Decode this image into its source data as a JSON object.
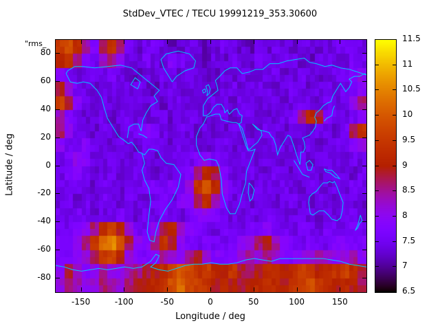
{
  "title": "StdDev_VTEC / TECU 19991219_353.30600",
  "corner_label": "\"rms_",
  "xlabel": "Longitude / deg",
  "ylabel": "Latitude / deg",
  "xticks": [
    -150,
    -100,
    -50,
    0,
    50,
    100,
    150
  ],
  "yticks": [
    80,
    60,
    40,
    20,
    0,
    -20,
    -40,
    -60,
    -80
  ],
  "colorbar": {
    "min": 6.5,
    "max": 11.5,
    "ticks": [
      6.5,
      7,
      7.5,
      8,
      8.5,
      9,
      9.5,
      10,
      10.5,
      11,
      11.5
    ]
  },
  "colors": {
    "coastline": "#00c8ff",
    "frame": "#000000",
    "background": "#ffffff"
  },
  "chart_data": {
    "type": "heatmap",
    "title": "StdDev_VTEC / TECU 19991219_353.30600",
    "xlabel": "Longitude / deg",
    "ylabel": "Latitude / deg",
    "zlabel": "StdDev_VTEC / TECU",
    "xlim": [
      -180,
      180
    ],
    "ylim": [
      -90,
      90
    ],
    "zlim": [
      6.5,
      11.5
    ],
    "grid": {
      "lon_min": -180,
      "lon_max": 180,
      "lon_step": 10,
      "lat_min": -90,
      "lat_max": 90,
      "lat_step": 10,
      "row_order": "north-to-south"
    },
    "values": [
      [
        9.6,
        9.9,
        9.3,
        8.4,
        7.8,
        8.8,
        9.4,
        8.6,
        7.6,
        7.3,
        7.5,
        7.7,
        7.4,
        7.2,
        7.3,
        7.5,
        7.4,
        7.2,
        7.3,
        7.5,
        7.4,
        7.3,
        7.2,
        7.4,
        7.3,
        7.5,
        7.4,
        7.3,
        7.5,
        7.4,
        7.3,
        7.4,
        7.5,
        7.6,
        7.5,
        7.4
      ],
      [
        9.0,
        9.3,
        8.6,
        7.8,
        7.5,
        8.2,
        8.6,
        7.9,
        7.4,
        7.3,
        7.6,
        7.4,
        7.3,
        7.8,
        7.6,
        7.4,
        7.3,
        7.2,
        7.4,
        7.3,
        7.5,
        7.4,
        7.3,
        7.6,
        7.4,
        7.3,
        7.5,
        7.4,
        7.3,
        7.2,
        7.4,
        7.5,
        7.3,
        7.4,
        7.6,
        7.5
      ],
      [
        7.8,
        7.6,
        7.4,
        7.3,
        7.5,
        7.4,
        7.6,
        7.4,
        7.3,
        7.2,
        7.4,
        7.3,
        7.5,
        7.4,
        7.3,
        7.5,
        7.4,
        7.3,
        7.2,
        7.4,
        7.3,
        7.5,
        7.4,
        7.3,
        7.4,
        7.5,
        7.3,
        7.4,
        7.5,
        7.4,
        7.3,
        7.4,
        7.5,
        7.6,
        7.8,
        8.0
      ],
      [
        8.8,
        8.2,
        7.6,
        7.4,
        7.3,
        7.5,
        7.4,
        7.3,
        7.4,
        7.5,
        7.3,
        7.2,
        7.4,
        7.5,
        7.3,
        7.4,
        7.5,
        7.4,
        7.3,
        7.4,
        7.5,
        7.3,
        7.4,
        7.5,
        7.4,
        7.3,
        7.4,
        7.5,
        7.4,
        7.3,
        7.4,
        7.5,
        7.4,
        7.5,
        7.7,
        7.9
      ],
      [
        9.6,
        8.8,
        7.8,
        7.4,
        7.3,
        7.5,
        7.4,
        7.3,
        7.5,
        7.4,
        7.3,
        7.4,
        7.2,
        7.4,
        7.5,
        7.3,
        7.4,
        7.3,
        7.5,
        7.4,
        7.3,
        7.5,
        7.4,
        7.3,
        7.4,
        7.5,
        7.3,
        7.4,
        7.5,
        7.4,
        7.3,
        7.5,
        7.4,
        7.5,
        8.0,
        8.6
      ],
      [
        8.4,
        7.8,
        7.5,
        7.3,
        7.4,
        7.5,
        7.3,
        7.4,
        7.5,
        7.4,
        7.3,
        7.4,
        7.5,
        7.3,
        7.4,
        7.5,
        7.4,
        7.3,
        7.4,
        7.5,
        7.3,
        7.4,
        7.5,
        7.4,
        7.3,
        7.4,
        7.5,
        7.6,
        8.6,
        9.2,
        8.8,
        7.8,
        7.5,
        7.4,
        7.6,
        7.8
      ],
      [
        8.6,
        7.9,
        7.5,
        7.4,
        7.3,
        7.5,
        7.4,
        7.3,
        7.5,
        7.6,
        7.8,
        7.7,
        7.4,
        7.3,
        7.5,
        7.4,
        7.3,
        7.4,
        7.2,
        7.3,
        7.5,
        7.4,
        7.3,
        7.4,
        7.5,
        7.4,
        7.3,
        7.5,
        7.4,
        7.3,
        7.5,
        7.4,
        7.3,
        7.6,
        8.8,
        9.4
      ],
      [
        7.9,
        7.6,
        7.4,
        7.8,
        7.5,
        7.4,
        7.3,
        7.5,
        7.4,
        7.3,
        7.6,
        7.5,
        7.4,
        7.3,
        7.5,
        7.4,
        7.2,
        7.3,
        7.4,
        7.5,
        7.3,
        7.4,
        7.5,
        7.4,
        7.3,
        7.5,
        7.4,
        7.3,
        7.4,
        7.5,
        7.3,
        7.4,
        7.5,
        7.4,
        7.8,
        8.2
      ],
      [
        7.5,
        7.7,
        8.0,
        7.8,
        7.4,
        7.3,
        7.5,
        7.4,
        7.3,
        7.5,
        7.4,
        7.3,
        7.5,
        7.4,
        7.6,
        7.5,
        7.8,
        8.0,
        7.6,
        7.4,
        7.3,
        7.5,
        7.4,
        7.3,
        7.5,
        7.4,
        7.3,
        7.4,
        7.5,
        7.3,
        7.4,
        7.5,
        7.4,
        7.3,
        7.5,
        7.4
      ],
      [
        7.4,
        7.6,
        7.9,
        7.5,
        7.3,
        7.4,
        7.5,
        7.3,
        7.4,
        7.5,
        7.4,
        7.3,
        7.5,
        7.4,
        7.6,
        7.8,
        8.6,
        9.2,
        8.8,
        7.8,
        7.4,
        7.3,
        7.5,
        7.4,
        7.3,
        7.5,
        7.4,
        7.3,
        7.5,
        7.4,
        7.3,
        7.4,
        7.5,
        7.4,
        7.3,
        7.5
      ],
      [
        7.5,
        7.4,
        7.6,
        7.4,
        7.3,
        7.5,
        7.4,
        7.3,
        7.5,
        7.4,
        7.6,
        7.7,
        7.5,
        7.8,
        7.6,
        8.2,
        9.4,
        10.0,
        9.2,
        8.0,
        7.5,
        7.4,
        7.3,
        7.5,
        7.4,
        7.3,
        7.5,
        7.4,
        7.3,
        7.5,
        7.4,
        7.3,
        7.5,
        7.4,
        7.6,
        7.5
      ],
      [
        7.4,
        7.5,
        7.3,
        7.5,
        7.4,
        7.6,
        7.4,
        7.3,
        7.5,
        7.4,
        7.3,
        7.5,
        7.6,
        7.4,
        7.8,
        8.0,
        8.8,
        9.2,
        8.4,
        7.8,
        7.4,
        7.5,
        7.3,
        7.4,
        7.5,
        7.3,
        7.4,
        7.5,
        7.4,
        7.3,
        7.5,
        7.4,
        7.3,
        7.5,
        7.4,
        7.3
      ],
      [
        7.5,
        7.4,
        7.6,
        7.5,
        7.3,
        7.4,
        7.5,
        7.6,
        7.4,
        7.3,
        7.5,
        7.4,
        7.6,
        7.5,
        7.3,
        7.6,
        7.8,
        8.0,
        7.8,
        7.5,
        7.4,
        7.3,
        7.5,
        7.4,
        7.6,
        7.5,
        7.3,
        7.4,
        7.5,
        7.4,
        7.3,
        7.5,
        7.4,
        7.6,
        7.5,
        7.4
      ],
      [
        7.6,
        7.5,
        7.8,
        8.0,
        8.6,
        9.2,
        9.6,
        9.0,
        8.2,
        7.6,
        7.5,
        8.0,
        8.8,
        9.2,
        8.4,
        7.8,
        7.6,
        7.5,
        7.4,
        7.6,
        7.5,
        7.4,
        7.6,
        7.5,
        7.8,
        7.6,
        7.5,
        7.4,
        7.6,
        7.5,
        7.4,
        7.6,
        7.5,
        7.4,
        7.6,
        7.5
      ],
      [
        7.8,
        7.7,
        8.0,
        8.6,
        9.4,
        10.2,
        10.5,
        9.8,
        8.8,
        8.0,
        7.8,
        8.6,
        9.4,
        8.8,
        7.9,
        7.6,
        7.5,
        7.7,
        7.6,
        7.5,
        7.7,
        8.0,
        8.2,
        8.6,
        9.0,
        8.4,
        7.8,
        7.6,
        7.5,
        7.7,
        7.6,
        7.5,
        7.7,
        7.8,
        7.6,
        7.7
      ],
      [
        7.7,
        7.6,
        7.9,
        8.2,
        8.8,
        9.4,
        9.6,
        9.0,
        8.2,
        7.8,
        7.7,
        8.0,
        8.4,
        8.2,
        8.0,
        8.6,
        8.8,
        8.2,
        7.8,
        7.7,
        7.9,
        8.2,
        8.4,
        8.2,
        8.6,
        8.2,
        7.9,
        7.8,
        8.0,
        8.2,
        8.4,
        8.2,
        8.0,
        8.2,
        8.4,
        8.0
      ],
      [
        8.0,
        8.8,
        8.2,
        7.9,
        8.0,
        8.4,
        8.2,
        8.0,
        8.4,
        8.6,
        8.8,
        9.0,
        9.2,
        9.6,
        10.0,
        9.8,
        9.4,
        9.6,
        9.2,
        9.0,
        9.4,
        8.8,
        8.6,
        9.0,
        9.2,
        9.4,
        9.0,
        9.2,
        9.6,
        9.4,
        9.0,
        9.2,
        9.4,
        9.6,
        9.2,
        8.8
      ],
      [
        8.2,
        8.6,
        8.4,
        8.0,
        8.2,
        8.6,
        8.4,
        8.2,
        8.6,
        8.8,
        9.0,
        9.2,
        9.4,
        9.8,
        10.2,
        9.8,
        9.6,
        9.4,
        9.0,
        9.2,
        9.0,
        8.8,
        9.0,
        9.2,
        9.4,
        9.2,
        9.0,
        9.4,
        9.6,
        9.8,
        9.4,
        9.2,
        9.0,
        9.2,
        9.0,
        8.8
      ]
    ]
  }
}
